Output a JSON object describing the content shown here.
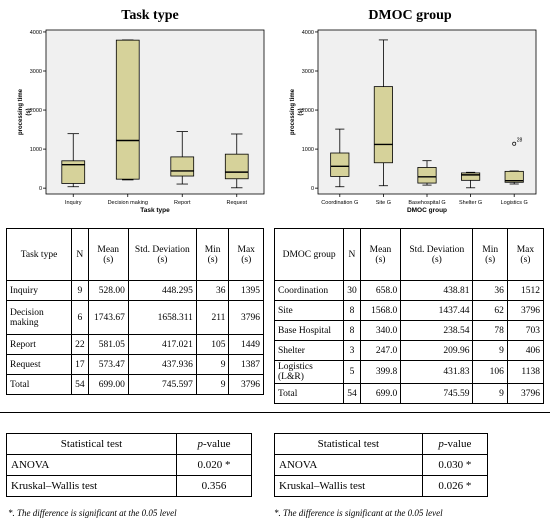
{
  "chart_data": [
    {
      "type": "box",
      "title": "Task type",
      "xlabel": "Task type",
      "ylabel": "processing time (s)",
      "yticks": [
        0,
        1000,
        2000,
        3000,
        4000
      ],
      "ylim": [
        -150,
        4050
      ],
      "categories": [
        "Inquiry",
        "Decision making",
        "Report",
        "Request"
      ],
      "boxes": [
        {
          "min": 36,
          "q1": 120,
          "median": 600,
          "q3": 700,
          "max": 1395
        },
        {
          "min": 211,
          "q1": 230,
          "median": 1220,
          "q3": 3790,
          "max": 3796
        },
        {
          "min": 105,
          "q1": 310,
          "median": 440,
          "q3": 800,
          "max": 1449
        },
        {
          "min": 9,
          "q1": 240,
          "median": 410,
          "q3": 870,
          "max": 1387
        }
      ],
      "outliers": []
    },
    {
      "type": "box",
      "title": "DMOC group",
      "xlabel": "DMOC group",
      "ylabel": "processing time (s)",
      "yticks": [
        0,
        1000,
        2000,
        3000,
        4000
      ],
      "ylim": [
        -150,
        4050
      ],
      "categories": [
        "Coordination G",
        "Site G",
        "Basehospital G",
        "Shelter G",
        "Logistics G"
      ],
      "boxes": [
        {
          "min": 36,
          "q1": 300,
          "median": 560,
          "q3": 900,
          "max": 1512
        },
        {
          "min": 62,
          "q1": 650,
          "median": 1120,
          "q3": 2600,
          "max": 3796
        },
        {
          "min": 78,
          "q1": 130,
          "median": 290,
          "q3": 530,
          "max": 703
        },
        {
          "min": 9,
          "q1": 200,
          "median": 340,
          "q3": 390,
          "max": 406
        },
        {
          "min": 106,
          "q1": 150,
          "median": 190,
          "q3": 430,
          "max": 440
        }
      ],
      "outliers": [
        {
          "category": "Logistics G",
          "value": 1138,
          "label": "28"
        }
      ]
    }
  ],
  "table_task": {
    "headers": [
      "Task type",
      "N",
      "Mean (s)",
      "Std. Deviation (s)",
      "Min (s)",
      "Max (s)"
    ],
    "rows": [
      [
        "Inquiry",
        "9",
        "528.00",
        "448.295",
        "36",
        "1395"
      ],
      [
        "Decision making",
        "6",
        "1743.67",
        "1658.311",
        "211",
        "3796"
      ],
      [
        "Report",
        "22",
        "581.05",
        "417.021",
        "105",
        "1449"
      ],
      [
        "Request",
        "17",
        "573.47",
        "437.936",
        "9",
        "1387"
      ],
      [
        "Total",
        "54",
        "699.00",
        "745.597",
        "9",
        "3796"
      ]
    ]
  },
  "table_dmoc": {
    "headers": [
      "DMOC group",
      "N",
      "Mean (s)",
      "Std. Deviation (s)",
      "Min (s)",
      "Max (s)"
    ],
    "rows": [
      [
        "Coordination",
        "30",
        "658.0",
        "438.81",
        "36",
        "1512"
      ],
      [
        "Site",
        "8",
        "1568.0",
        "1437.44",
        "62",
        "3796"
      ],
      [
        "Base Hospital",
        "8",
        "340.0",
        "238.54",
        "78",
        "703"
      ],
      [
        "Shelter",
        "3",
        "247.0",
        "209.96",
        "9",
        "406"
      ],
      [
        "Logistics (L&R)",
        "5",
        "399.8",
        "431.83",
        "106",
        "1138"
      ],
      [
        "Total",
        "54",
        "699.0",
        "745.59",
        "9",
        "3796"
      ]
    ]
  },
  "test_task": {
    "header_test": "Statistical test",
    "header_p_italic": "p",
    "header_p_rest": "-value",
    "rows": [
      [
        "ANOVA",
        "0.020 *"
      ],
      [
        "Kruskal–Wallis test",
        "0.356"
      ]
    ]
  },
  "test_dmoc": {
    "header_test": "Statistical test",
    "header_p_italic": "p",
    "header_p_rest": "-value",
    "rows": [
      [
        "ANOVA",
        "0.030 *"
      ],
      [
        "Kruskal–Wallis test",
        "0.026 *"
      ]
    ]
  },
  "footnote": "*. The difference is significant at the 0.05 level",
  "colors": {
    "box_fill": "#d6d29a",
    "plot_bg": "#f0f0f0",
    "line": "#000000"
  }
}
